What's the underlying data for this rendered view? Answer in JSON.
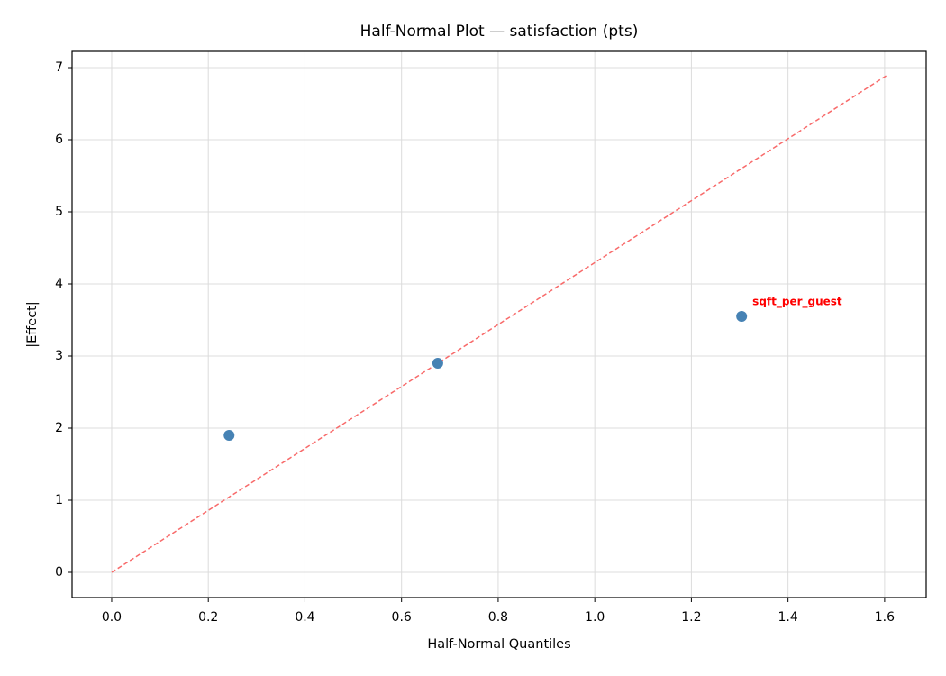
{
  "chart_data": {
    "type": "scatter",
    "title": "Half-Normal Plot — satisfaction (pts)",
    "xlabel": "Half-Normal Quantiles",
    "ylabel": "|Effect|",
    "xlim": [
      -0.082,
      1.686
    ],
    "ylim": [
      -0.35,
      7.225
    ],
    "xticks": [
      {
        "value": 0,
        "label": "0.0"
      },
      0.2,
      0.4,
      0.6,
      0.8,
      {
        "value": 1,
        "label": "1.0"
      },
      1.2,
      1.4,
      1.6
    ],
    "yticks": [
      0,
      1,
      2,
      3,
      4,
      5,
      6,
      7
    ],
    "grid": true,
    "series": [
      {
        "color": "#4682b4",
        "x": [
          0.243,
          0.675,
          1.304
        ],
        "values": [
          1.9,
          2.9,
          3.55
        ],
        "labels": [
          null,
          null,
          "sqft_per_guest"
        ],
        "label_color": "#ff0000"
      }
    ],
    "reference_line": {
      "x": [
        0,
        1.604
      ],
      "values": [
        0,
        6.89
      ],
      "color": "#f86a6a",
      "style": "dashed"
    }
  }
}
